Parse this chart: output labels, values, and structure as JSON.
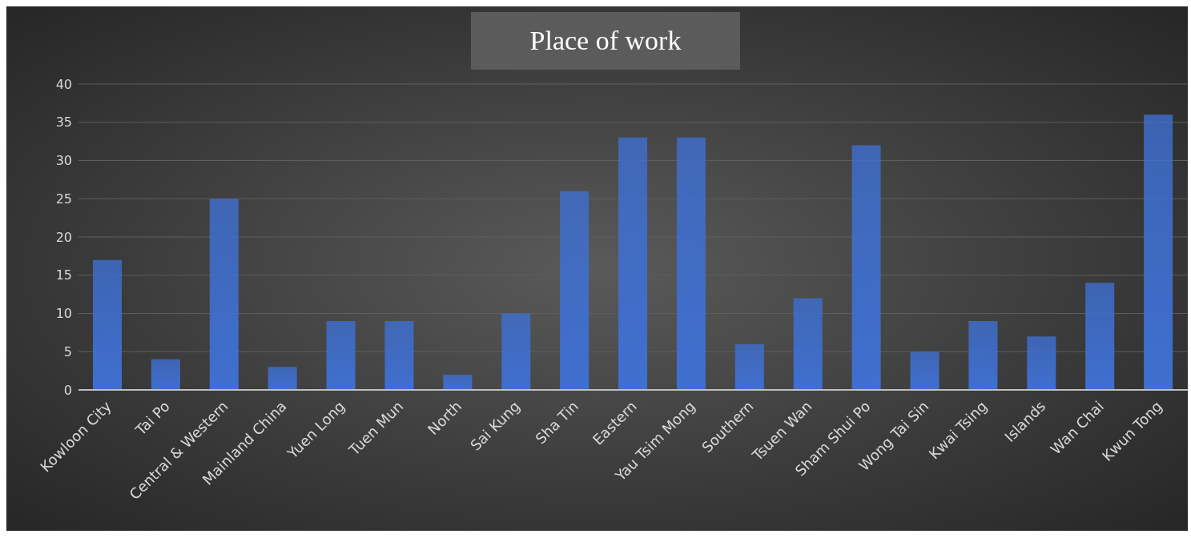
{
  "chart_data": {
    "type": "bar",
    "title": "Place of work",
    "categories": [
      "Kowloon City",
      "Tai Po",
      "Central & Western",
      "Mainland China",
      "Yuen Long",
      "Tuen Mun",
      "North",
      "Sai Kung",
      "Sha Tin",
      "Eastern",
      "Yau Tsim Mong",
      "Southern",
      "Tsuen Wan",
      "Sham Shui Po",
      "Wong Tai Sin",
      "Kwai Tsing",
      "Islands",
      "Wan Chai",
      "Kwun Tong"
    ],
    "values": [
      17,
      4,
      25,
      3,
      9,
      9,
      2,
      10,
      26,
      33,
      33,
      6,
      12,
      32,
      5,
      9,
      7,
      14,
      36
    ],
    "color": "#3f6fd0",
    "ylim": [
      0,
      40
    ],
    "yticks": [
      0,
      5,
      10,
      15,
      20,
      25,
      30,
      35,
      40
    ],
    "grid": "y",
    "legend": false
  }
}
